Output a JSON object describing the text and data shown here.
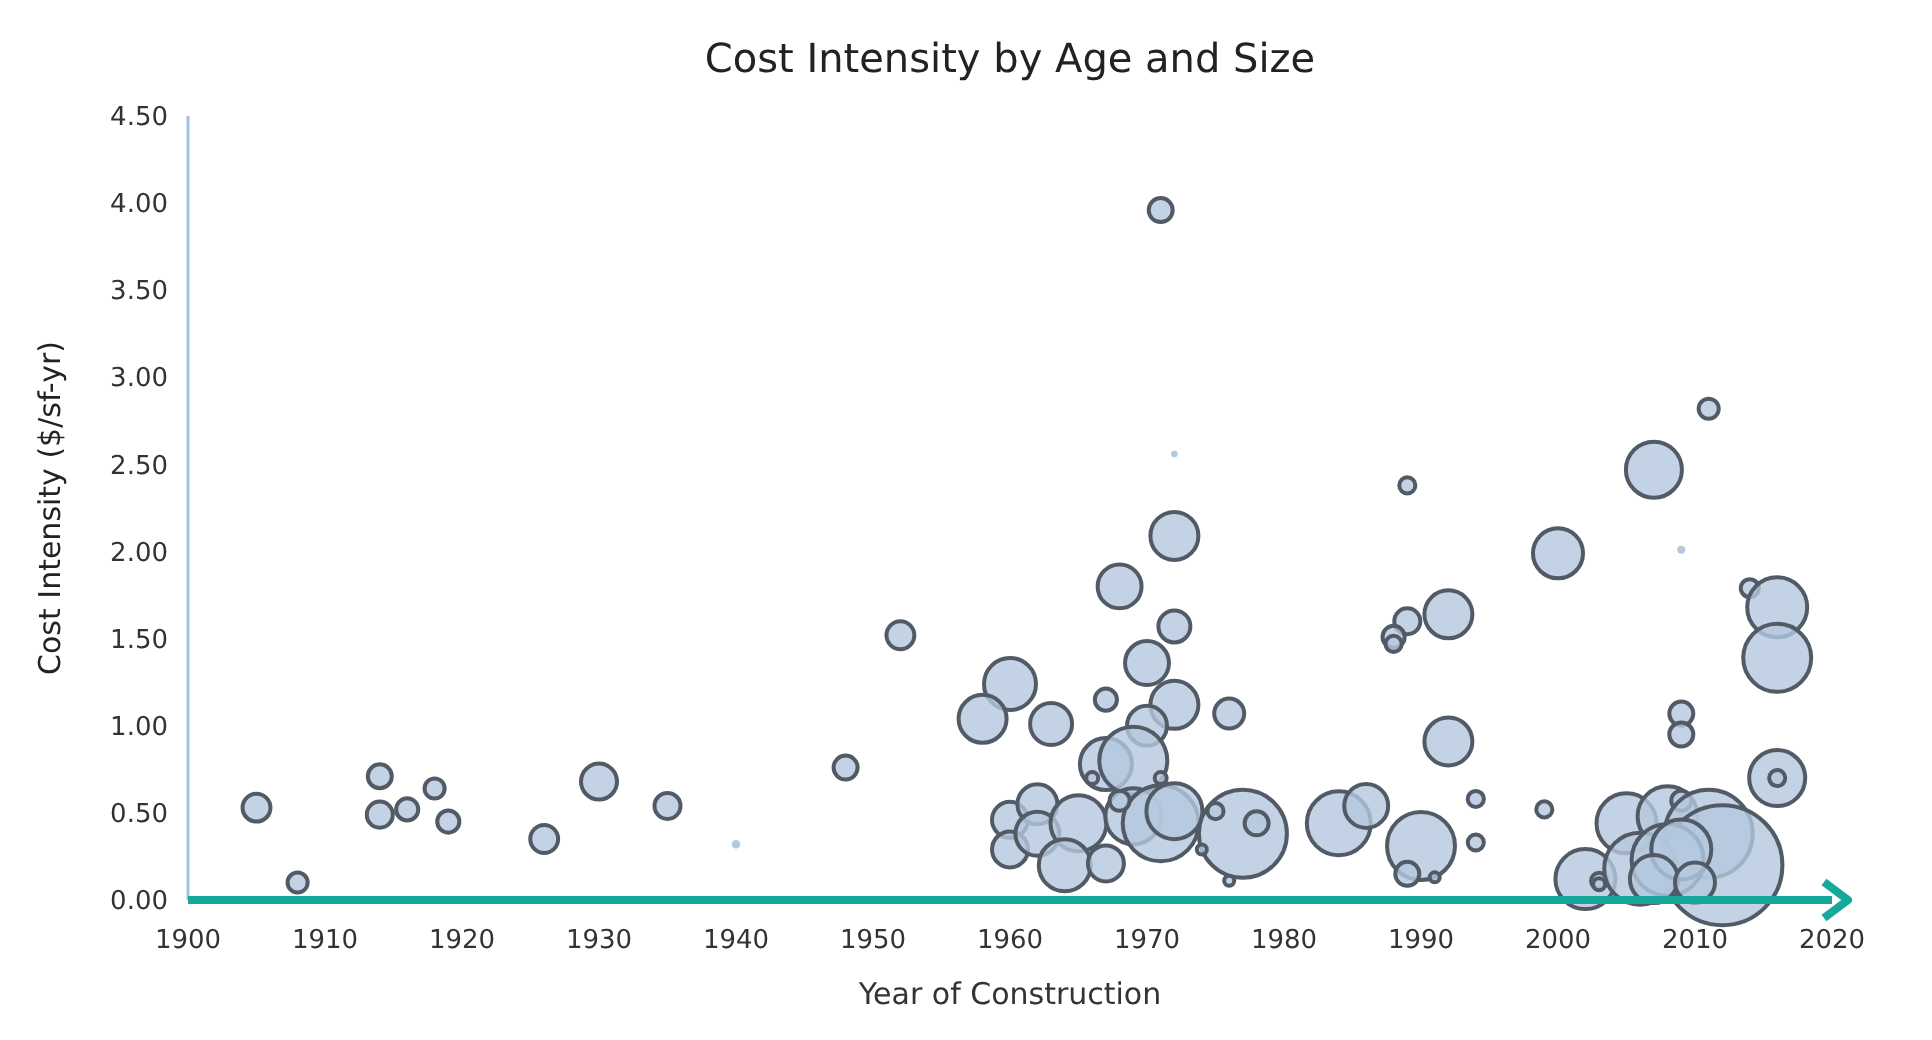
{
  "chart_data": {
    "type": "bubble",
    "title": "Cost Intensity by Age and Size",
    "xlabel": "Year of Construction",
    "ylabel": "Cost Intensity ($/sf-yr)",
    "xlim": [
      1900,
      2020
    ],
    "xticks": [
      1900,
      1910,
      1920,
      1930,
      1940,
      1950,
      1960,
      1970,
      1980,
      1990,
      2000,
      2010,
      2020
    ],
    "ylim": [
      0,
      4.5
    ],
    "yticks": [
      {
        "value": 0,
        "label": "0.00"
      },
      {
        "value": 0.5,
        "label": "0.50"
      },
      {
        "value": 1,
        "label": "1.00"
      },
      {
        "value": 1.5,
        "label": "1.50"
      },
      {
        "value": 2,
        "label": "2.00"
      },
      {
        "value": 2.5,
        "label": "2.50"
      },
      {
        "value": 3,
        "label": "3.00"
      },
      {
        "value": 3.5,
        "label": "3.50"
      },
      {
        "value": 4,
        "label": "4.00"
      },
      {
        "value": 4.5,
        "label": "4.50"
      }
    ],
    "grid": false,
    "series": [
      {
        "color": "#b4c8de",
        "x": [
          1905,
          1908,
          1914,
          1914,
          1916,
          1918,
          1919,
          1926,
          1930,
          1935,
          1940,
          1948,
          1952,
          1972,
          1972,
          1968,
          1972,
          1970,
          1960,
          1958,
          1967,
          1972,
          1976,
          1963,
          1970,
          1967,
          1969,
          1971,
          1960,
          1962,
          1960,
          1962,
          1965,
          1964,
          1967,
          1969,
          1971,
          1972,
          1968,
          1977,
          1978,
          1975,
          1976,
          1966,
          1974,
          1984,
          1986,
          1971,
          2011,
          2007,
          1989,
          2009,
          2000,
          2014,
          2016,
          2016,
          1992,
          1989,
          1988,
          1988,
          2009,
          2009,
          1992,
          2016,
          2016,
          1994,
          1999,
          1994,
          1990,
          1989,
          1991,
          2002,
          2003,
          2003,
          2005,
          2008,
          2009,
          2011,
          2012,
          2006,
          2008,
          2009,
          2007,
          2010
        ],
        "values": [
          0.53,
          0.1,
          0.71,
          0.49,
          0.52,
          0.64,
          0.45,
          0.35,
          0.68,
          0.54,
          0.32,
          0.76,
          1.52,
          2.56,
          2.09,
          1.8,
          1.57,
          1.36,
          1.24,
          1.04,
          1.15,
          1.12,
          1.07,
          1.01,
          1.0,
          0.78,
          0.8,
          0.7,
          0.46,
          0.55,
          0.29,
          0.38,
          0.44,
          0.2,
          0.21,
          0.48,
          0.44,
          0.51,
          0.57,
          0.38,
          0.44,
          0.51,
          0.11,
          0.7,
          0.29,
          0.44,
          0.54,
          3.96,
          2.82,
          2.47,
          2.38,
          2.01,
          1.99,
          1.79,
          1.68,
          1.39,
          1.64,
          1.6,
          1.51,
          1.47,
          1.07,
          0.95,
          0.91,
          0.7,
          0.7,
          0.58,
          0.52,
          0.33,
          0.31,
          0.15,
          0.13,
          0.12,
          0.11,
          0.09,
          0.44,
          0.48,
          0.57,
          0.38,
          0.2,
          0.18,
          0.23,
          0.29,
          0.12,
          0.1
        ],
        "sizes": [
          0.054,
          0.028,
          0.04,
          0.047,
          0.034,
          0.028,
          0.034,
          0.054,
          0.09,
          0.047,
          0.005,
          0.04,
          0.054,
          0.003,
          0.16,
          0.134,
          0.071,
          0.134,
          0.188,
          0.16,
          0.034,
          0.16,
          0.0625,
          0.1225,
          0.111,
          0.188,
          0.321,
          0.01,
          0.09,
          0.111,
          0.09,
          0.134,
          0.218,
          0.188,
          0.09,
          0.218,
          0.401,
          0.218,
          0.028,
          0.538,
          0.04,
          0.018,
          0.007,
          0.01,
          0.007,
          0.284,
          0.134,
          0.04,
          0.028,
          0.218,
          0.018,
          0.0044,
          0.174,
          0.0225,
          0.25,
          0.321,
          0.16,
          0.047,
          0.034,
          0.018,
          0.04,
          0.04,
          0.16,
          0.218,
          0.018,
          0.018,
          0.018,
          0.018,
          0.321,
          0.04,
          0.007,
          0.25,
          0.018,
          0.01,
          0.25,
          0.25,
          0.028,
          0.538,
          1,
          0.36,
          0.36,
          0.25,
          0.16,
          0.111
        ]
      }
    ]
  }
}
